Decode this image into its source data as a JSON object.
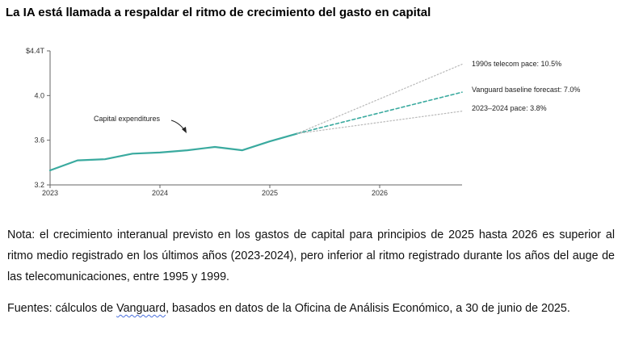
{
  "title": "La IA está llamada a respaldar el ritmo de crecimiento del gasto en capital",
  "chart_data": {
    "type": "line",
    "title": "La IA está llamada a respaldar el ritmo de crecimiento del gasto en capital",
    "xlabel": "",
    "ylabel": "",
    "x_ticks": [
      "2023",
      "2024",
      "2025",
      "2026"
    ],
    "y_ticks": [
      "$4.4T",
      "4.0",
      "3.6",
      "3.2"
    ],
    "y_tick_values": [
      4.4,
      4.0,
      3.6,
      3.2
    ],
    "xlim": [
      2023.0,
      2026.75
    ],
    "ylim": [
      3.2,
      4.4
    ],
    "series": [
      {
        "name": "Capital expenditures",
        "style": "solid",
        "x": [
          2023.0,
          2023.25,
          2023.5,
          2023.75,
          2024.0,
          2024.25,
          2024.5,
          2024.75,
          2025.0,
          2025.25
        ],
        "values": [
          3.33,
          3.42,
          3.43,
          3.48,
          3.49,
          3.51,
          3.54,
          3.51,
          3.59,
          3.66
        ]
      },
      {
        "name": "1990s telecom pace: 10.5%",
        "style": "dotted",
        "x": [
          2025.25,
          2026.75
        ],
        "values": [
          3.66,
          4.28
        ]
      },
      {
        "name": "Vanguard baseline forecast: 7.0%",
        "style": "dashed",
        "x": [
          2025.25,
          2026.75
        ],
        "values": [
          3.66,
          4.03
        ]
      },
      {
        "name": "2023–2024 pace: 3.8%",
        "style": "dotted",
        "x": [
          2025.25,
          2026.75
        ],
        "values": [
          3.66,
          3.86
        ]
      }
    ],
    "annotations": {
      "capex_label": "Capital expenditures",
      "telecom_label": "1990s telecom pace: 10.5%",
      "baseline_label": "Vanguard baseline forecast: 7.0%",
      "recent_label": "2023–2024 pace: 3.8%"
    },
    "colors": {
      "main": "#3aaa9f",
      "scenario": "#b8b8b8",
      "axis": "#666666"
    }
  },
  "note": {
    "text": "Nota: el crecimiento interanual previsto en los gastos de capital para principios de 2025 hasta 2026 es superior al ritmo medio registrado en los últimos años (2023-2024), pero inferior al ritmo registrado durante los años del auge de las telecomunicaciones, entre 1995 y 1999."
  },
  "sources": {
    "prefix": "Fuentes: cálculos de ",
    "highlight": "Vanguard",
    "suffix": ", basados en datos de la Oficina de Análisis Económico, a 30 de junio de 2025."
  }
}
